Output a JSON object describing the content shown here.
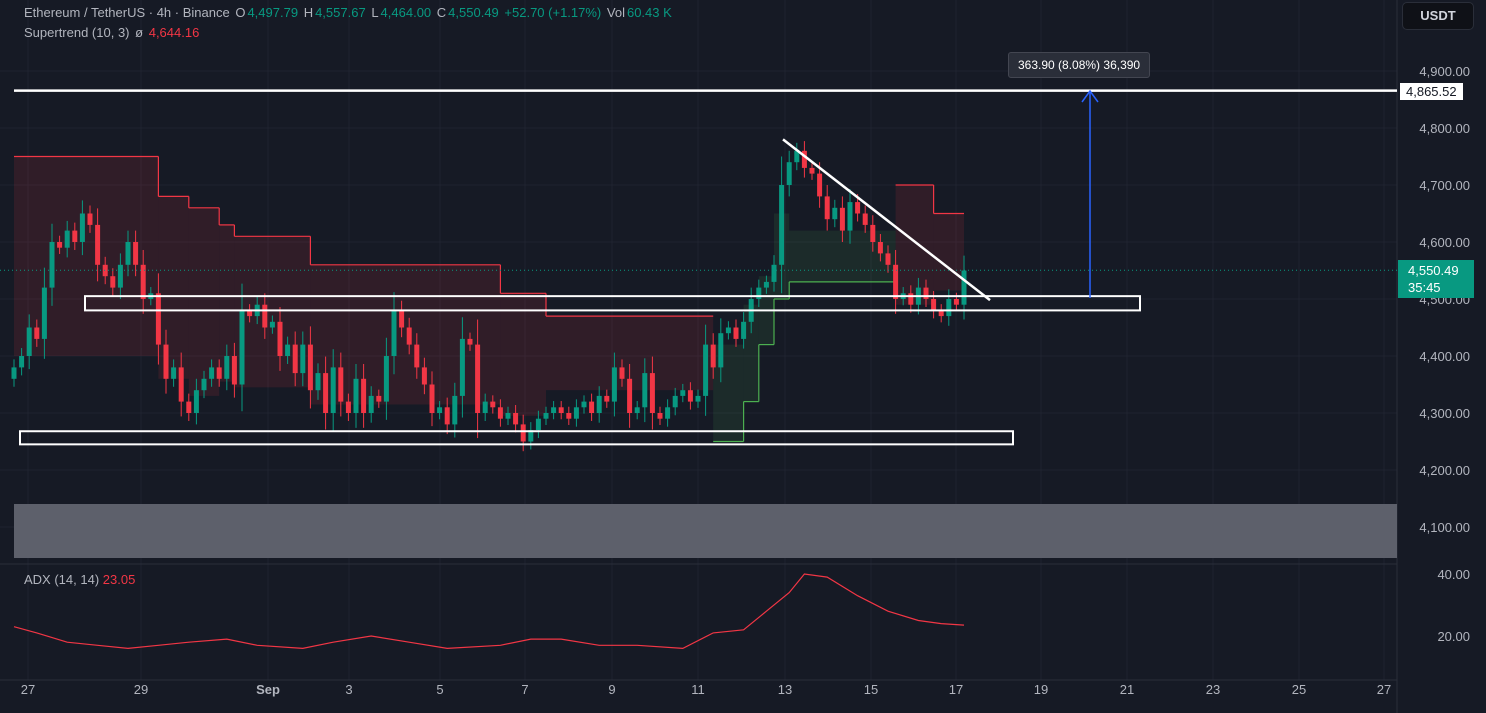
{
  "header": {
    "symbol": "Ethereum / TetherUS · 4h · Binance",
    "o_label": "O",
    "o": "4,497.79",
    "h_label": "H",
    "h": "4,557.67",
    "l_label": "L",
    "l": "4,464.00",
    "c_label": "C",
    "c": "4,550.49",
    "change": "+52.70 (+1.17%)",
    "vol_label": "Vol",
    "vol": "60.43 K",
    "indicator": "Supertrend (10, 3)",
    "indicator_symbol": "ø",
    "indicator_value": "4,644.16",
    "currency": "USDT"
  },
  "colors": {
    "background": "#161a25",
    "up": "#089981",
    "down": "#f23645",
    "supertrend_up": "#4caf50",
    "supertrend_down": "#f23645",
    "drawing": "#ffffff",
    "arrow": "#2962ff",
    "adx": "#f23645"
  },
  "price_axis": {
    "ticks": [
      "4,900.00",
      "4,800.00",
      "4,700.00",
      "4,600.00",
      "4,500.00",
      "4,400.00",
      "4,300.00",
      "4,200.00",
      "4,100.00"
    ],
    "tick_values": [
      4900,
      4800,
      4700,
      4600,
      4500,
      4400,
      4300,
      4200,
      4100
    ]
  },
  "adx_axis": {
    "ticks": [
      "40.00",
      "20.00"
    ],
    "tick_values": [
      40,
      20
    ]
  },
  "time_axis": {
    "ticks": [
      "27",
      "29",
      "Sep",
      "3",
      "5",
      "7",
      "9",
      "11",
      "13",
      "15",
      "17",
      "19",
      "21",
      "23",
      "25",
      "27"
    ]
  },
  "current_price": {
    "value": "4,550.49",
    "countdown": "35:45",
    "price": 4550.49
  },
  "horizontal_line": {
    "label": "4,865.52",
    "price": 4865.52
  },
  "measure": {
    "label": "363.90 (8.08%) 36,390"
  },
  "adx": {
    "label": "ADX (14, 14)",
    "value": "23.05"
  },
  "chart_data": {
    "type": "candlestick",
    "interval": "4h",
    "closes": [
      4380,
      4400,
      4450,
      4430,
      4520,
      4600,
      4590,
      4620,
      4600,
      4650,
      4630,
      4560,
      4540,
      4520,
      4560,
      4600,
      4560,
      4500,
      4510,
      4420,
      4360,
      4380,
      4320,
      4300,
      4340,
      4360,
      4380,
      4360,
      4400,
      4350,
      4480,
      4470,
      4490,
      4450,
      4460,
      4400,
      4420,
      4370,
      4420,
      4340,
      4370,
      4300,
      4380,
      4320,
      4300,
      4360,
      4300,
      4330,
      4320,
      4400,
      4480,
      4450,
      4420,
      4380,
      4350,
      4300,
      4310,
      4280,
      4330,
      4430,
      4420,
      4300,
      4320,
      4310,
      4290,
      4300,
      4280,
      4250,
      4270,
      4290,
      4300,
      4310,
      4300,
      4290,
      4310,
      4320,
      4300,
      4330,
      4320,
      4380,
      4360,
      4300,
      4310,
      4370,
      4300,
      4290,
      4310,
      4330,
      4340,
      4320,
      4330,
      4420,
      4380,
      4440,
      4450,
      4430,
      4460,
      4500,
      4520,
      4530,
      4560,
      4700,
      4740,
      4760,
      4730,
      4720,
      4680,
      4640,
      4660,
      4620,
      4670,
      4650,
      4630,
      4600,
      4580,
      4560,
      4500,
      4510,
      4490,
      4520,
      4500,
      4480,
      4470,
      4500,
      4490,
      4550
    ],
    "supertrend": [
      {
        "from": 0,
        "to": 19,
        "value": 4750,
        "dir": "down"
      },
      {
        "from": 19,
        "to": 23,
        "value": 4680,
        "dir": "down"
      },
      {
        "from": 23,
        "to": 27,
        "value": 4660,
        "dir": "down"
      },
      {
        "from": 27,
        "to": 29,
        "value": 4630,
        "dir": "down"
      },
      {
        "from": 29,
        "to": 39,
        "value": 4610,
        "dir": "down"
      },
      {
        "from": 39,
        "to": 64,
        "value": 4560,
        "dir": "down"
      },
      {
        "from": 64,
        "to": 70,
        "value": 4510,
        "dir": "down"
      },
      {
        "from": 70,
        "to": 92,
        "value": 4470,
        "dir": "down"
      },
      {
        "from": 92,
        "to": 96,
        "value": 4250,
        "dir": "up"
      },
      {
        "from": 96,
        "to": 98,
        "value": 4320,
        "dir": "up"
      },
      {
        "from": 98,
        "to": 100,
        "value": 4420,
        "dir": "up"
      },
      {
        "from": 100,
        "to": 102,
        "value": 4500,
        "dir": "up"
      },
      {
        "from": 102,
        "to": 116,
        "value": 4530,
        "dir": "up"
      },
      {
        "from": 116,
        "to": 121,
        "value": 4700,
        "dir": "down"
      },
      {
        "from": 121,
        "to": 125,
        "value": 4650,
        "dir": "down"
      }
    ],
    "adx_points": [
      [
        0,
        23
      ],
      [
        3,
        21
      ],
      [
        7,
        18
      ],
      [
        11,
        17
      ],
      [
        15,
        16
      ],
      [
        19,
        17
      ],
      [
        23,
        18
      ],
      [
        28,
        19
      ],
      [
        32,
        17
      ],
      [
        38,
        16
      ],
      [
        42,
        18
      ],
      [
        47,
        20
      ],
      [
        52,
        18
      ],
      [
        57,
        16
      ],
      [
        64,
        17
      ],
      [
        68,
        19
      ],
      [
        72,
        19
      ],
      [
        77,
        17
      ],
      [
        82,
        17
      ],
      [
        88,
        16
      ],
      [
        92,
        21
      ],
      [
        96,
        22
      ],
      [
        99,
        28
      ],
      [
        102,
        34
      ],
      [
        104,
        40
      ],
      [
        107,
        39
      ],
      [
        111,
        33
      ],
      [
        115,
        28
      ],
      [
        119,
        25
      ],
      [
        122,
        24
      ],
      [
        125,
        23.5
      ]
    ],
    "zones": [
      {
        "low": 4480,
        "high": 4505
      },
      {
        "low": 4245,
        "high": 4268
      }
    ],
    "trendline": [
      [
        4780
      ],
      [
        4498
      ]
    ],
    "ylim": [
      4040,
      4960
    ]
  }
}
